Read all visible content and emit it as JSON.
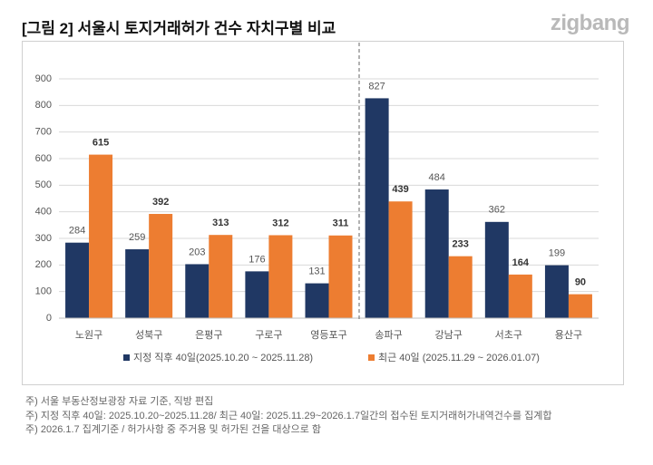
{
  "header": {
    "title": "[그림 2] 서울시 토지거래허가 건수 자치구별 비교",
    "logo": "zigbang"
  },
  "chart_data": {
    "type": "bar",
    "categories": [
      "노원구",
      "성북구",
      "은평구",
      "구로구",
      "영등포구",
      "송파구",
      "강남구",
      "서초구",
      "용산구"
    ],
    "series": [
      {
        "name": "지정 직후 40일(2025.10.20 ~ 2025.11.28)",
        "color": "#203864",
        "values": [
          284,
          259,
          203,
          176,
          131,
          827,
          484,
          362,
          199
        ]
      },
      {
        "name": "최근 40일 (2025.11.29 ~ 2026.01.07)",
        "color": "#ed7d31",
        "values": [
          615,
          392,
          313,
          312,
          311,
          439,
          233,
          164,
          90
        ]
      }
    ],
    "ylim": [
      0,
      900
    ],
    "yticks": [
      0,
      100,
      200,
      300,
      400,
      500,
      600,
      700,
      800,
      900
    ],
    "grid": true,
    "legend": "bottom"
  },
  "notes": [
    "주) 서울 부동산정보광장 자료 기준, 직방 편집",
    "주) 지정 직후 40일: 2025.10.20~2025.11.28/ 최근 40일: 2025.11.29~2026.1.7일간의  접수된 토지거래허가내역건수를 집계합",
    "주) 2026.1.7 집계기준 / 허가사항 중 주거용 및 허가된 건을 대상으로 함"
  ]
}
